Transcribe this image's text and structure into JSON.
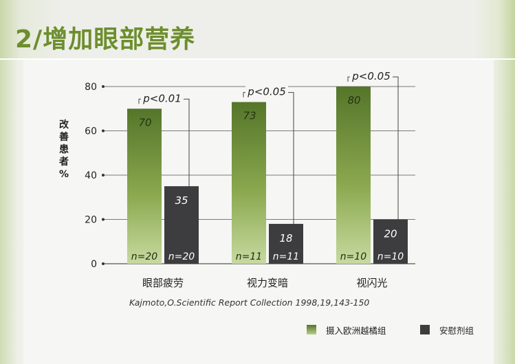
{
  "header": {
    "title": "2/增加眼部营养"
  },
  "citation": "Kajmoto,O.Scientific Report Collection 1998,19,143-150",
  "colors": {
    "treatment": "#6d8e2d",
    "placebo": "#3d3d3f",
    "title": "#6d8e2d"
  },
  "legend": [
    {
      "label": "摄入欧洲越橘组",
      "color": "#6d8e2d"
    },
    {
      "label": "安慰剂组",
      "color": "#3d3d3f"
    }
  ],
  "chart_data": {
    "type": "bar",
    "categories": [
      "眼部疲劳",
      "视力变暗",
      "视闪光"
    ],
    "ylabel": "改善患者%",
    "ylim": [
      0,
      80
    ],
    "yticks": [
      0,
      20,
      40,
      60,
      80
    ],
    "grid": true,
    "legend_position": "bottom-right",
    "series": [
      {
        "name": "摄入欧洲越橘组",
        "values": [
          70,
          73,
          80
        ],
        "n": [
          "n=20",
          "n=11",
          "n=10"
        ]
      },
      {
        "name": "安慰剂组",
        "values": [
          35,
          18,
          20
        ],
        "n": [
          "n=20",
          "n=11",
          "n=10"
        ]
      }
    ],
    "significance": [
      "p<0.01",
      "p<0.05",
      "p<0.05"
    ]
  }
}
